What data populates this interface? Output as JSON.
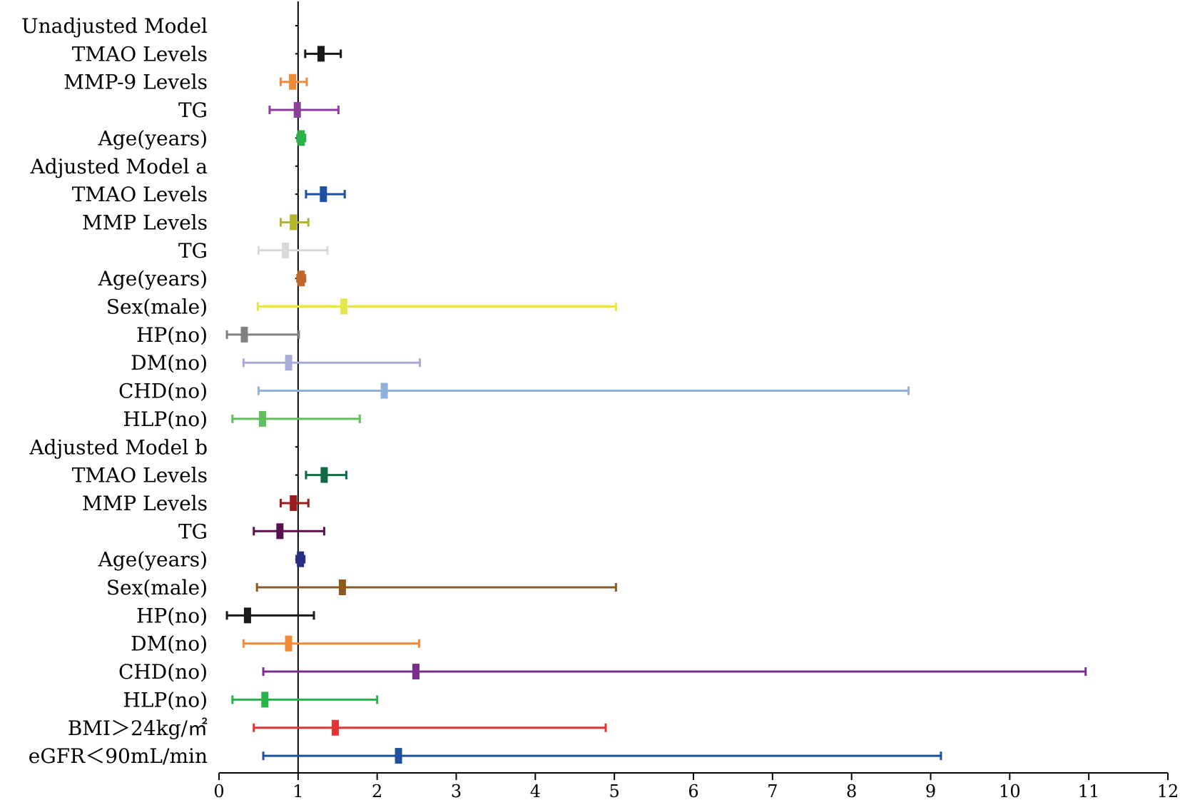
{
  "chart_data": {
    "type": "forest",
    "title": "",
    "xlabel": "",
    "ylabel": "",
    "xlim": [
      0,
      12
    ],
    "reference_line": 1,
    "x_ticks": [
      0,
      1,
      2,
      3,
      4,
      5,
      6,
      7,
      8,
      9,
      10,
      11,
      12
    ],
    "rows": [
      {
        "label": "Unadjusted Model",
        "header": true
      },
      {
        "label": "TMAO Levels",
        "est": 1.29,
        "low": 1.09,
        "high": 1.54,
        "color": "#1a1a1a"
      },
      {
        "label": "MMP-9 Levels",
        "est": 0.93,
        "low": 0.78,
        "high": 1.11,
        "color": "#f08a36"
      },
      {
        "label": "TG",
        "est": 0.99,
        "low": 0.64,
        "high": 1.51,
        "color": "#8a3f9e"
      },
      {
        "label": "Age(years)",
        "est": 1.04,
        "low": 0.99,
        "high": 1.09,
        "color": "#27b24a"
      },
      {
        "label": "Adjusted Model a",
        "header": true
      },
      {
        "label": "TMAO Levels",
        "est": 1.32,
        "low": 1.1,
        "high": 1.59,
        "color": "#1f4fa0"
      },
      {
        "label": "MMP Levels",
        "est": 0.94,
        "low": 0.78,
        "high": 1.13,
        "color": "#b3b52c"
      },
      {
        "label": "TG",
        "est": 0.84,
        "low": 0.5,
        "high": 1.37,
        "color": "#d9d9d9"
      },
      {
        "label": "Age(years)",
        "est": 1.04,
        "low": 0.99,
        "high": 1.09,
        "color": "#c0672a"
      },
      {
        "label": "Sex(male)",
        "est": 1.58,
        "low": 0.49,
        "high": 5.02,
        "color": "#e6e64a"
      },
      {
        "label": "HP(no)",
        "est": 0.32,
        "low": 0.1,
        "high": 1.01,
        "color": "#808080"
      },
      {
        "label": "DM(no)",
        "est": 0.88,
        "low": 0.31,
        "high": 2.54,
        "color": "#a9acdb"
      },
      {
        "label": "CHD(no)",
        "est": 2.09,
        "low": 0.5,
        "high": 8.72,
        "color": "#8eb1dc"
      },
      {
        "label": "HLP(no)",
        "est": 0.55,
        "low": 0.17,
        "high": 1.78,
        "color": "#5ec15e"
      },
      {
        "label": "Adjusted Model b",
        "header": true
      },
      {
        "label": "TMAO Levels",
        "est": 1.33,
        "low": 1.1,
        "high": 1.61,
        "color": "#0f6b44"
      },
      {
        "label": "MMP Levels",
        "est": 0.94,
        "low": 0.78,
        "high": 1.13,
        "color": "#9b1c1c"
      },
      {
        "label": "TG",
        "est": 0.77,
        "low": 0.44,
        "high": 1.33,
        "color": "#5b0f4c"
      },
      {
        "label": "Age(years)",
        "est": 1.03,
        "low": 0.98,
        "high": 1.08,
        "color": "#262e7f"
      },
      {
        "label": "Sex(male)",
        "est": 1.56,
        "low": 0.48,
        "high": 5.02,
        "color": "#8a5a21"
      },
      {
        "label": "HP(no)",
        "est": 0.36,
        "low": 0.1,
        "high": 1.2,
        "color": "#1a1a1a"
      },
      {
        "label": "DM(no)",
        "est": 0.88,
        "low": 0.31,
        "high": 2.53,
        "color": "#f08a36"
      },
      {
        "label": "CHD(no)",
        "est": 2.49,
        "low": 0.56,
        "high": 10.96,
        "color": "#7a2d8c"
      },
      {
        "label": "HLP(no)",
        "est": 0.58,
        "low": 0.17,
        "high": 2.0,
        "color": "#27b24a"
      },
      {
        "label": "BMI＞24kg/㎡",
        "est": 1.47,
        "low": 0.44,
        "high": 4.89,
        "color": "#e53232"
      },
      {
        "label": "eGFR＜90mL/min",
        "est": 2.27,
        "low": 0.56,
        "high": 9.13,
        "color": "#1f4fa0"
      }
    ]
  }
}
